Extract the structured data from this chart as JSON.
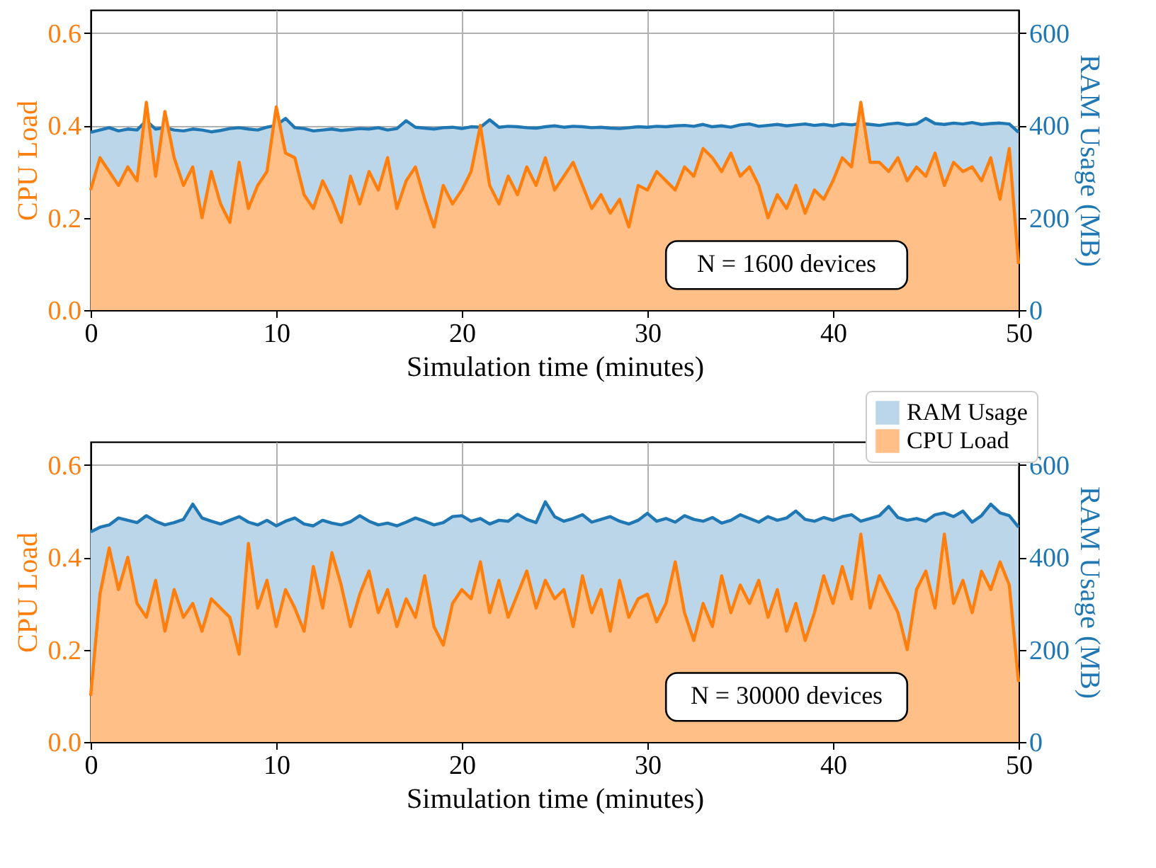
{
  "chart_data": [
    {
      "type": "area",
      "xlabel": "Simulation time (minutes)",
      "ylabel": "CPU Load",
      "y2label": "RAM Usage (MB)",
      "xlim": [
        0,
        50
      ],
      "xticks": [
        0,
        10,
        20,
        30,
        40,
        50
      ],
      "ylim": [
        0,
        0.65
      ],
      "yticks": [
        {
          "value": 0,
          "label": "0.0"
        },
        0.2,
        0.4,
        0.6
      ],
      "y2lim": [
        0,
        650
      ],
      "y2ticks": [
        0,
        200,
        400,
        600
      ],
      "grid": true,
      "annotations": [
        "N = 1600 devices"
      ],
      "x": [
        0,
        0.5,
        1,
        1.5,
        2,
        2.5,
        3,
        3.5,
        4,
        4.5,
        5,
        5.5,
        6,
        6.5,
        7,
        7.5,
        8,
        8.5,
        9,
        9.5,
        10,
        10.5,
        11,
        11.5,
        12,
        12.5,
        13,
        13.5,
        14,
        14.5,
        15,
        15.5,
        16,
        16.5,
        17,
        17.5,
        18,
        18.5,
        19,
        19.5,
        20,
        20.5,
        21,
        21.5,
        22,
        22.5,
        23,
        23.5,
        24,
        24.5,
        25,
        25.5,
        26,
        26.5,
        27,
        27.5,
        28,
        28.5,
        29,
        29.5,
        30,
        30.5,
        31,
        31.5,
        32,
        32.5,
        33,
        33.5,
        34,
        34.5,
        35,
        35.5,
        36,
        36.5,
        37,
        37.5,
        38,
        38.5,
        39,
        39.5,
        40,
        40.5,
        41,
        41.5,
        42,
        42.5,
        43,
        43.5,
        44,
        44.5,
        45,
        45.5,
        46,
        46.5,
        47,
        47.5,
        48,
        48.5,
        49,
        49.5,
        50
      ],
      "series": [
        {
          "color": "#1f77b4",
          "axis": "y2",
          "values": [
            385,
            390,
            395,
            388,
            392,
            390,
            410,
            392,
            395,
            390,
            388,
            392,
            390,
            386,
            389,
            393,
            395,
            392,
            390,
            396,
            400,
            415,
            395,
            393,
            388,
            390,
            392,
            389,
            391,
            393,
            392,
            395,
            390,
            393,
            410,
            396,
            394,
            392,
            395,
            396,
            393,
            397,
            396,
            412,
            396,
            398,
            397,
            395,
            394,
            397,
            399,
            396,
            398,
            397,
            395,
            396,
            394,
            393,
            395,
            397,
            396,
            398,
            397,
            399,
            400,
            398,
            402,
            397,
            399,
            396,
            401,
            403,
            398,
            400,
            402,
            399,
            401,
            403,
            400,
            402,
            399,
            403,
            401,
            404,
            402,
            400,
            403,
            405,
            401,
            403,
            415,
            404,
            402,
            405,
            403,
            406,
            402,
            404,
            405,
            403,
            385
          ]
        },
        {
          "color": "#ff7f0e",
          "axis": "y",
          "values": [
            0.26,
            0.33,
            0.3,
            0.27,
            0.31,
            0.28,
            0.45,
            0.29,
            0.43,
            0.33,
            0.27,
            0.31,
            0.2,
            0.3,
            0.23,
            0.19,
            0.32,
            0.22,
            0.27,
            0.3,
            0.44,
            0.34,
            0.33,
            0.25,
            0.22,
            0.28,
            0.24,
            0.19,
            0.29,
            0.23,
            0.3,
            0.26,
            0.33,
            0.22,
            0.28,
            0.31,
            0.24,
            0.18,
            0.27,
            0.23,
            0.26,
            0.3,
            0.4,
            0.27,
            0.23,
            0.29,
            0.25,
            0.31,
            0.27,
            0.33,
            0.26,
            0.29,
            0.32,
            0.27,
            0.22,
            0.25,
            0.21,
            0.24,
            0.18,
            0.27,
            0.26,
            0.3,
            0.28,
            0.26,
            0.31,
            0.29,
            0.35,
            0.33,
            0.3,
            0.34,
            0.29,
            0.31,
            0.27,
            0.2,
            0.25,
            0.22,
            0.27,
            0.21,
            0.26,
            0.24,
            0.28,
            0.33,
            0.31,
            0.45,
            0.32,
            0.32,
            0.3,
            0.33,
            0.28,
            0.31,
            0.29,
            0.34,
            0.27,
            0.32,
            0.3,
            0.31,
            0.28,
            0.33,
            0.24,
            0.35,
            0.1
          ]
        }
      ]
    },
    {
      "type": "area",
      "xlabel": "Simulation time (minutes)",
      "ylabel": "CPU Load",
      "y2label": "RAM Usage (MB)",
      "xlim": [
        0,
        50
      ],
      "xticks": [
        0,
        10,
        20,
        30,
        40,
        50
      ],
      "ylim": [
        0,
        0.65
      ],
      "yticks": [
        {
          "value": 0,
          "label": "0.0"
        },
        0.2,
        0.4,
        0.6
      ],
      "y2lim": [
        0,
        650
      ],
      "y2ticks": [
        0,
        200,
        400,
        600
      ],
      "grid": true,
      "legend": "top right",
      "annotations": [
        "N = 30000 devices"
      ],
      "x": [
        0,
        0.5,
        1,
        1.5,
        2,
        2.5,
        3,
        3.5,
        4,
        4.5,
        5,
        5.5,
        6,
        6.5,
        7,
        7.5,
        8,
        8.5,
        9,
        9.5,
        10,
        10.5,
        11,
        11.5,
        12,
        12.5,
        13,
        13.5,
        14,
        14.5,
        15,
        15.5,
        16,
        16.5,
        17,
        17.5,
        18,
        18.5,
        19,
        19.5,
        20,
        20.5,
        21,
        21.5,
        22,
        22.5,
        23,
        23.5,
        24,
        24.5,
        25,
        25.5,
        26,
        26.5,
        27,
        27.5,
        28,
        28.5,
        29,
        29.5,
        30,
        30.5,
        31,
        31.5,
        32,
        32.5,
        33,
        33.5,
        34,
        34.5,
        35,
        35.5,
        36,
        36.5,
        37,
        37.5,
        38,
        38.5,
        39,
        39.5,
        40,
        40.5,
        41,
        41.5,
        42,
        42.5,
        43,
        43.5,
        44,
        44.5,
        45,
        45.5,
        46,
        46.5,
        47,
        47.5,
        48,
        48.5,
        49,
        49.5,
        50
      ],
      "series": [
        {
          "name": "RAM Usage",
          "color": "#1f77b4",
          "axis": "y2",
          "values": [
            455,
            465,
            470,
            485,
            480,
            475,
            490,
            478,
            470,
            475,
            482,
            515,
            485,
            478,
            472,
            480,
            488,
            476,
            470,
            480,
            468,
            478,
            485,
            472,
            468,
            480,
            474,
            470,
            477,
            490,
            478,
            470,
            474,
            468,
            476,
            485,
            478,
            470,
            475,
            488,
            490,
            478,
            484,
            472,
            480,
            478,
            493,
            482,
            475,
            520,
            488,
            478,
            484,
            492,
            476,
            482,
            488,
            478,
            472,
            480,
            495,
            478,
            484,
            476,
            490,
            482,
            478,
            486,
            474,
            480,
            492,
            484,
            476,
            488,
            480,
            485,
            500,
            482,
            478,
            486,
            480,
            488,
            492,
            478,
            484,
            490,
            510,
            486,
            480,
            484,
            478,
            492,
            496,
            488,
            500,
            476,
            490,
            515,
            496,
            490,
            465
          ]
        },
        {
          "name": "CPU Load",
          "color": "#ff7f0e",
          "axis": "y",
          "values": [
            0.1,
            0.32,
            0.42,
            0.33,
            0.4,
            0.3,
            0.27,
            0.35,
            0.24,
            0.33,
            0.27,
            0.3,
            0.24,
            0.31,
            0.29,
            0.27,
            0.19,
            0.43,
            0.29,
            0.35,
            0.25,
            0.33,
            0.29,
            0.24,
            0.38,
            0.29,
            0.41,
            0.34,
            0.25,
            0.32,
            0.37,
            0.28,
            0.33,
            0.25,
            0.31,
            0.27,
            0.36,
            0.25,
            0.21,
            0.3,
            0.33,
            0.31,
            0.39,
            0.28,
            0.35,
            0.27,
            0.32,
            0.37,
            0.29,
            0.35,
            0.31,
            0.33,
            0.25,
            0.36,
            0.28,
            0.33,
            0.24,
            0.35,
            0.27,
            0.31,
            0.32,
            0.26,
            0.3,
            0.39,
            0.28,
            0.22,
            0.3,
            0.25,
            0.36,
            0.28,
            0.34,
            0.3,
            0.35,
            0.27,
            0.33,
            0.24,
            0.3,
            0.22,
            0.28,
            0.36,
            0.3,
            0.38,
            0.31,
            0.45,
            0.29,
            0.36,
            0.32,
            0.28,
            0.2,
            0.33,
            0.37,
            0.29,
            0.45,
            0.3,
            0.35,
            0.28,
            0.37,
            0.33,
            0.39,
            0.34,
            0.13
          ]
        }
      ]
    }
  ]
}
